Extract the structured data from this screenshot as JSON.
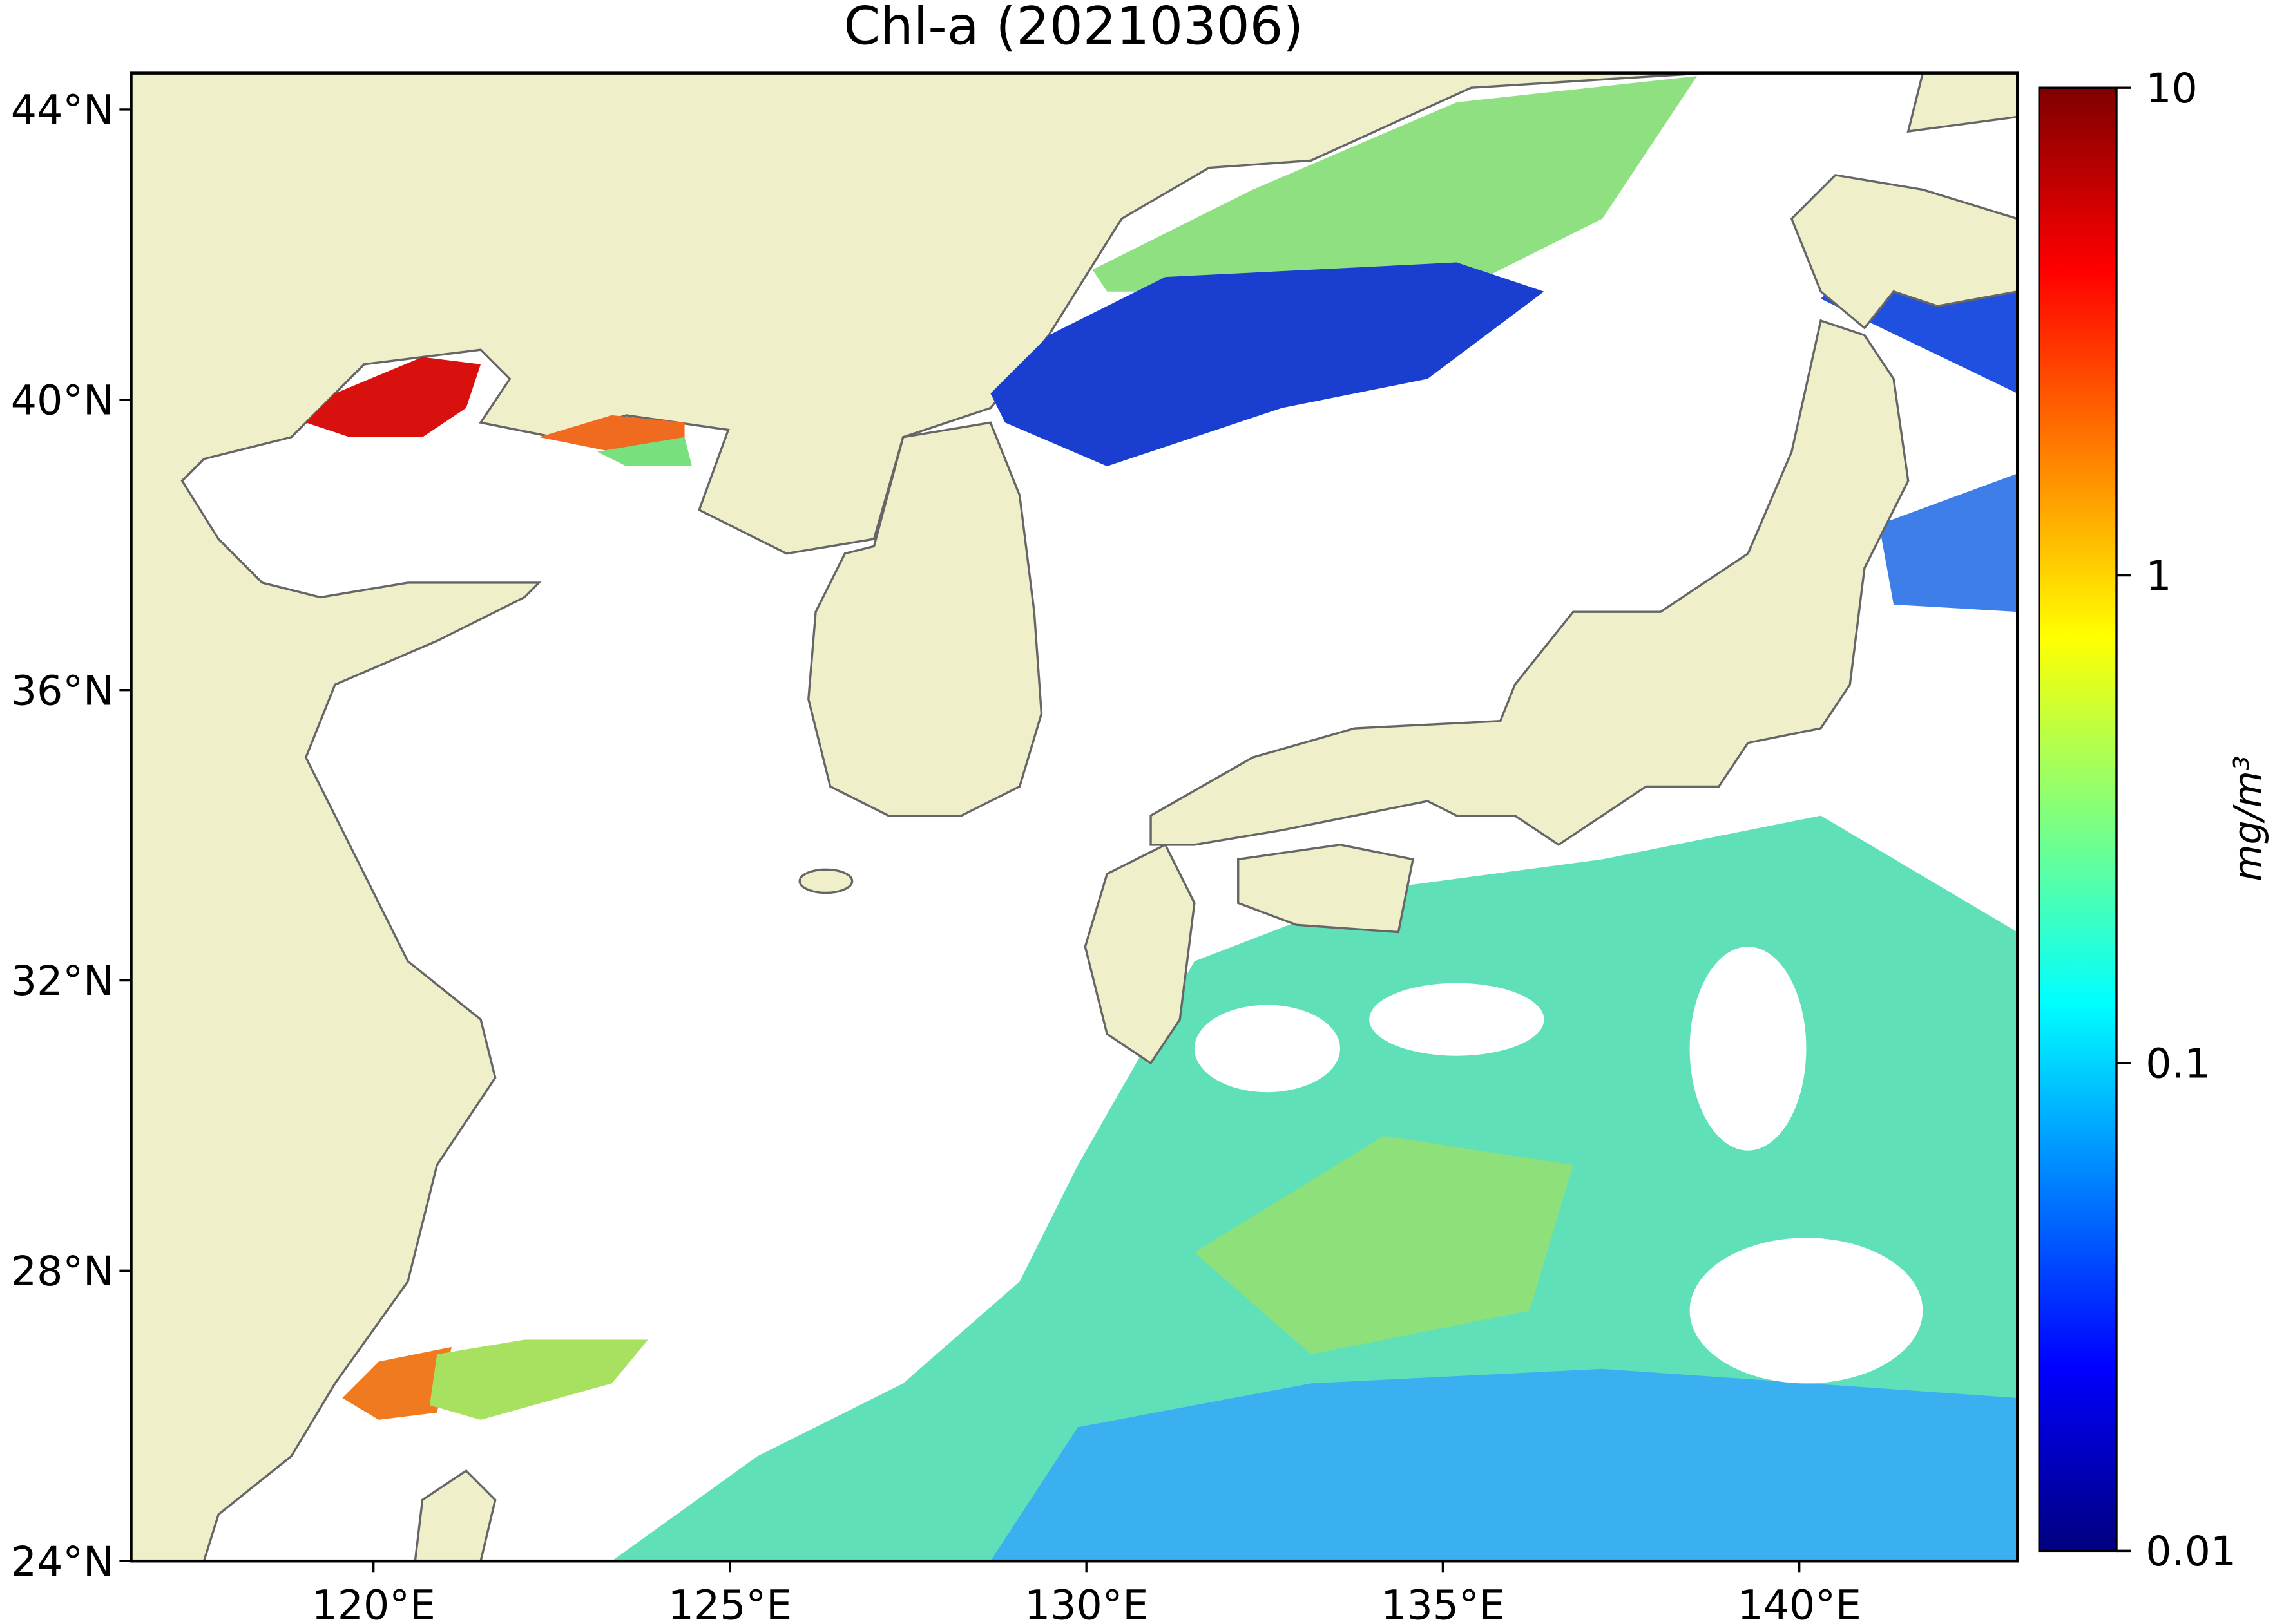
{
  "chart_data": {
    "type": "map",
    "title": "Chl-a (20210306)",
    "xlim": [
      116.6,
      143.06
    ],
    "ylim": [
      24,
      44.5
    ],
    "xticks": [
      {
        "value": 120,
        "label": "120°E"
      },
      {
        "value": 125,
        "label": "125°E"
      },
      {
        "value": 130,
        "label": "130°E"
      },
      {
        "value": 135,
        "label": "135°E"
      },
      {
        "value": 140,
        "label": "140°E"
      }
    ],
    "yticks": [
      {
        "value": 24,
        "label": "24°N"
      },
      {
        "value": 28,
        "label": "28°N"
      },
      {
        "value": 32,
        "label": "32°N"
      },
      {
        "value": 36,
        "label": "36°N"
      },
      {
        "value": 40,
        "label": "40°N"
      },
      {
        "value": 44,
        "label": "44°N"
      }
    ],
    "colorbar": {
      "label": "mg/m³",
      "scale": "log",
      "colormap": "jet",
      "lim": [
        0.01,
        10
      ],
      "ticks": [
        0.01,
        0.1,
        1,
        10
      ]
    }
  }
}
